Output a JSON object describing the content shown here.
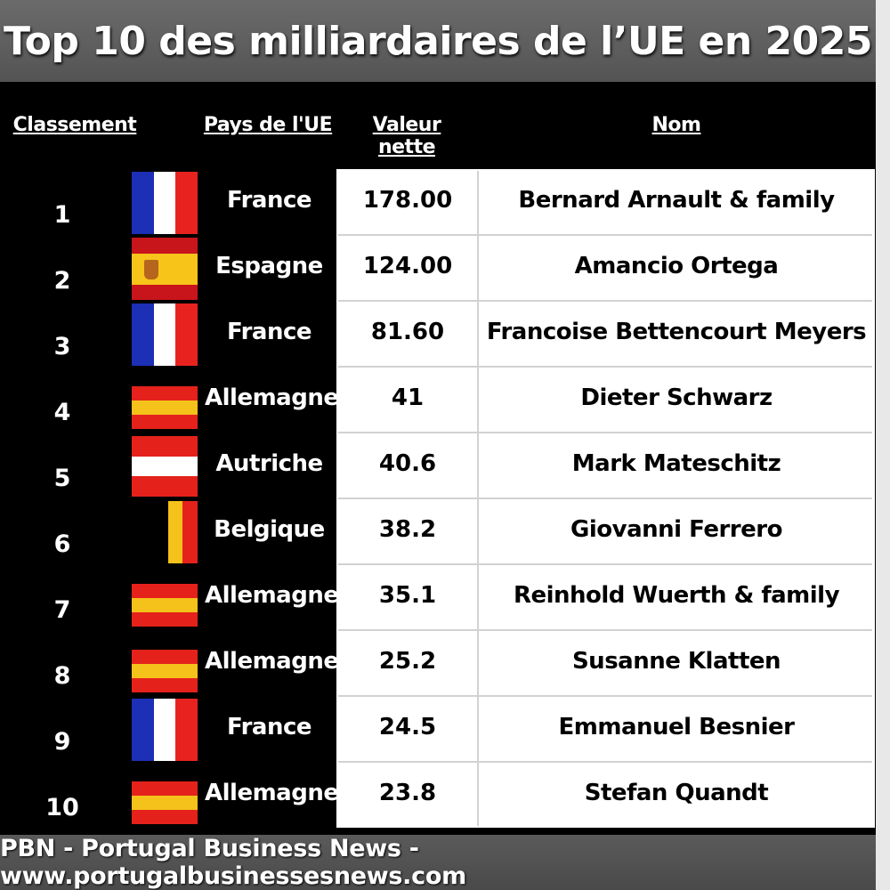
{
  "title": "Top 10 des milliardaires de l’UE en 2025",
  "headers": {
    "rank": "Classement",
    "country": "Pays de l'UE",
    "value": "Valeur nette",
    "name": "Nom"
  },
  "footer": "PBN - Portugal Business News - www.portugalbusinessesnews.com",
  "colors": {
    "background": "#000000",
    "title_bar": "#5f5f5f",
    "table": "#ffffff"
  },
  "chart_data": {
    "type": "table",
    "title": "Top 10 des milliardaires de l’UE en 2025",
    "columns": [
      "Classement",
      "Pays de l'UE",
      "Valeur nette",
      "Nom"
    ],
    "rows": [
      {
        "rank": "1",
        "flag": "france-flag",
        "country": "France",
        "value": "178.00",
        "name": "Bernard Arnault & family"
      },
      {
        "rank": "2",
        "flag": "spain-flag",
        "country": "Espagne",
        "value": "124.00",
        "name": "Amancio Ortega"
      },
      {
        "rank": "3",
        "flag": "france-flag",
        "country": "France",
        "value": "81.60",
        "name": "Francoise Bettencourt Meyers"
      },
      {
        "rank": "4",
        "flag": "germany-flag",
        "country": "Allemagne",
        "value": "41",
        "name": "Dieter Schwarz"
      },
      {
        "rank": "5",
        "flag": "austria-flag",
        "country": "Autriche",
        "value": "40.6",
        "name": "Mark Mateschitz"
      },
      {
        "rank": "6",
        "flag": "belgium-flag",
        "country": "Belgique",
        "value": "38.2",
        "name": "Giovanni Ferrero"
      },
      {
        "rank": "7",
        "flag": "germany-flag",
        "country": "Allemagne",
        "value": "35.1",
        "name": "Reinhold Wuerth & family"
      },
      {
        "rank": "8",
        "flag": "germany-flag",
        "country": "Allemagne",
        "value": "25.2",
        "name": "Susanne Klatten"
      },
      {
        "rank": "9",
        "flag": "france-flag",
        "country": "France",
        "value": "24.5",
        "name": "Emmanuel Besnier"
      },
      {
        "rank": "10",
        "flag": "germany-flag",
        "country": "Allemagne",
        "value": "23.8",
        "name": "Stefan Quandt"
      }
    ]
  }
}
